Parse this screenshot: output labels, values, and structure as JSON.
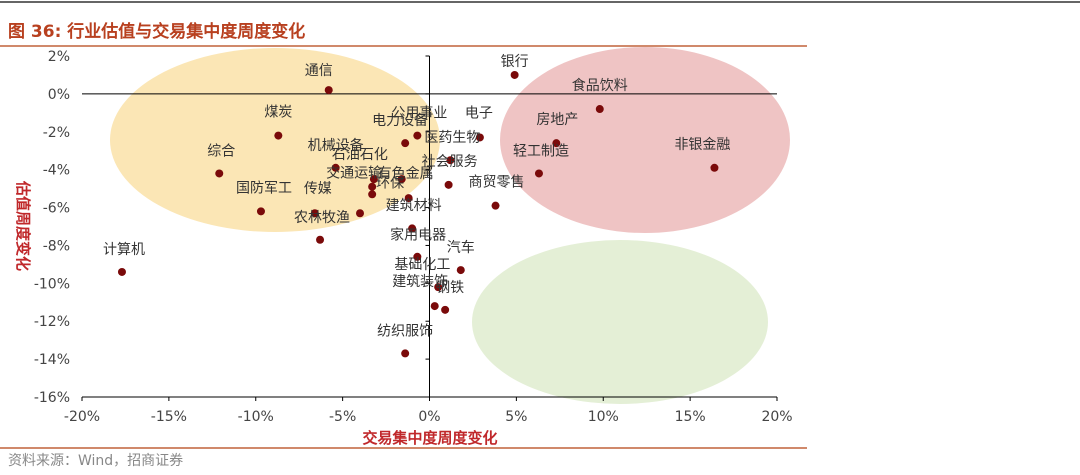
{
  "header": {
    "title": "图 36:  行业估值与交易集中度周度变化"
  },
  "chart_data": {
    "type": "scatter",
    "x_label": "交易集中度周度变化",
    "y_label": "估值周度变化",
    "xlim": [
      -20,
      20
    ],
    "ylim": [
      -16,
      2
    ],
    "xticks": [
      {
        "value": -20,
        "label": "-20%"
      },
      {
        "value": -15,
        "label": "-15%"
      },
      {
        "value": -10,
        "label": "-10%"
      },
      {
        "value": -5,
        "label": "-5%"
      },
      {
        "value": 0,
        "label": "0%"
      },
      {
        "value": 5,
        "label": "5%"
      },
      {
        "value": 10,
        "label": "10%"
      },
      {
        "value": 15,
        "label": "15%"
      },
      {
        "value": 20,
        "label": "20%"
      }
    ],
    "yticks": [
      {
        "value": 2,
        "label": "2%"
      },
      {
        "value": 0,
        "label": "0%"
      },
      {
        "value": -2,
        "label": "-2%"
      },
      {
        "value": -4,
        "label": "-4%"
      },
      {
        "value": -6,
        "label": "-6%"
      },
      {
        "value": -8,
        "label": "-8%"
      },
      {
        "value": -10,
        "label": "-10%"
      },
      {
        "value": -12,
        "label": "-12%"
      },
      {
        "value": -14,
        "label": "-14%"
      },
      {
        "value": -16,
        "label": "-16%"
      }
    ],
    "point_labels": [
      "通信",
      "银行",
      "食品饮料",
      "煤炭",
      "公用事业",
      "电子",
      "房地产",
      "电力设备",
      "非银金融",
      "医药生物",
      "轻工制造",
      "综合",
      "机械设备",
      "石油石化",
      "社会服务",
      "交通运输",
      "有色金属",
      "国防军工",
      "传媒",
      "环保",
      "农林牧渔",
      "建筑材料",
      "商贸零售",
      "家用电器",
      null,
      "计算机",
      "汽车",
      "基础化工",
      "建筑装饰",
      "钢铁",
      null,
      "纺织服饰"
    ],
    "series": [
      {
        "color": "#7a0a0a",
        "x": [
          -5.8,
          4.9,
          9.8,
          -8.7,
          -0.7,
          2.9,
          7.3,
          -1.4,
          16.4,
          1.2,
          6.3,
          -12.1,
          -5.4,
          -3.2,
          1.1,
          -3.3,
          -1.6,
          -9.7,
          -6.6,
          -3.3,
          -4.0,
          -1.2,
          3.8,
          -1.0,
          -6.3,
          -17.7,
          1.8,
          -0.7,
          0.5,
          0.9,
          0.3,
          -1.4
        ],
        "values": [
          0.2,
          1.0,
          -0.8,
          -2.2,
          -2.2,
          -2.3,
          -2.6,
          -2.6,
          -3.9,
          -3.5,
          -4.2,
          -4.2,
          -3.9,
          -4.5,
          -4.8,
          -5.3,
          -4.5,
          -6.2,
          -6.3,
          -4.9,
          -6.3,
          -5.5,
          -5.9,
          -7.1,
          -7.7,
          -9.4,
          -9.3,
          -8.6,
          -10.2,
          -11.4,
          -11.2,
          -13.7
        ]
      }
    ]
  },
  "footer": {
    "source": "资料来源：Wind，招商证券"
  }
}
